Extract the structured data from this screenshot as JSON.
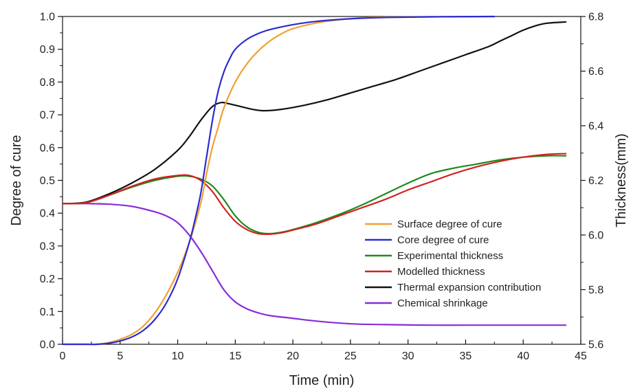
{
  "chart_data": {
    "type": "line",
    "title": "",
    "xlabel": "Time (min)",
    "ylabel_left": "Degree of cure",
    "ylabel_right": "Thickness(mm)",
    "xlim": [
      0,
      45
    ],
    "ylim_left": [
      0,
      1.0
    ],
    "ylim_right": [
      5.6,
      6.8
    ],
    "x_ticks": [
      0,
      5,
      10,
      15,
      20,
      25,
      30,
      35,
      40,
      45
    ],
    "y_left_ticks": [
      0.0,
      0.1,
      0.2,
      0.3,
      0.4,
      0.5,
      0.6,
      0.7,
      0.8,
      0.9,
      1.0
    ],
    "y_right_ticks": [
      5.6,
      5.8,
      6.0,
      6.2,
      6.4,
      6.6,
      6.8
    ],
    "grid": false,
    "legend_position": "bottom-right",
    "series": [
      {
        "name": "Surface degree of cure",
        "axis": "left",
        "color": "#f0a030",
        "points": [
          [
            0,
            0
          ],
          [
            2,
            0
          ],
          [
            3,
            0
          ],
          [
            4,
            0.005
          ],
          [
            5,
            0.015
          ],
          [
            6,
            0.03
          ],
          [
            7,
            0.055
          ],
          [
            8,
            0.095
          ],
          [
            9,
            0.15
          ],
          [
            10,
            0.22
          ],
          [
            11,
            0.31
          ],
          [
            12,
            0.43
          ],
          [
            12.5,
            0.52
          ],
          [
            13,
            0.6
          ],
          [
            13.5,
            0.66
          ],
          [
            14,
            0.72
          ],
          [
            15,
            0.8
          ],
          [
            16,
            0.855
          ],
          [
            17,
            0.895
          ],
          [
            18,
            0.925
          ],
          [
            19,
            0.947
          ],
          [
            20,
            0.963
          ],
          [
            22,
            0.98
          ],
          [
            24,
            0.99
          ],
          [
            26,
            0.996
          ],
          [
            28,
            0.998
          ],
          [
            32,
            0.999
          ],
          [
            37.5,
            1.0
          ]
        ]
      },
      {
        "name": "Core degree of cure",
        "axis": "left",
        "color": "#2b2bd0",
        "points": [
          [
            0,
            0
          ],
          [
            2,
            0
          ],
          [
            3,
            0
          ],
          [
            4,
            0.003
          ],
          [
            5,
            0.01
          ],
          [
            6,
            0.022
          ],
          [
            7,
            0.042
          ],
          [
            8,
            0.075
          ],
          [
            9,
            0.125
          ],
          [
            10,
            0.2
          ],
          [
            11,
            0.31
          ],
          [
            11.5,
            0.38
          ],
          [
            12,
            0.46
          ],
          [
            12.5,
            0.57
          ],
          [
            13,
            0.68
          ],
          [
            13.5,
            0.77
          ],
          [
            14,
            0.83
          ],
          [
            14.5,
            0.87
          ],
          [
            15,
            0.9
          ],
          [
            16,
            0.93
          ],
          [
            17,
            0.948
          ],
          [
            18,
            0.96
          ],
          [
            20,
            0.975
          ],
          [
            22,
            0.985
          ],
          [
            25,
            0.993
          ],
          [
            28,
            0.997
          ],
          [
            32,
            0.999
          ],
          [
            37.5,
            1.0
          ]
        ]
      },
      {
        "name": "Experimental thickness",
        "axis": "right",
        "color": "#1c8a1c",
        "points": [
          [
            0,
            6.115
          ],
          [
            2,
            6.118
          ],
          [
            4,
            6.145
          ],
          [
            6,
            6.175
          ],
          [
            8,
            6.2
          ],
          [
            10,
            6.215
          ],
          [
            11,
            6.215
          ],
          [
            12,
            6.205
          ],
          [
            13,
            6.18
          ],
          [
            14,
            6.13
          ],
          [
            15,
            6.07
          ],
          [
            16,
            6.03
          ],
          [
            17,
            6.01
          ],
          [
            18,
            6.005
          ],
          [
            19,
            6.01
          ],
          [
            20,
            6.02
          ],
          [
            22,
            6.045
          ],
          [
            24,
            6.075
          ],
          [
            26,
            6.11
          ],
          [
            28,
            6.15
          ],
          [
            30,
            6.19
          ],
          [
            32,
            6.225
          ],
          [
            34,
            6.245
          ],
          [
            36,
            6.26
          ],
          [
            38,
            6.275
          ],
          [
            40,
            6.285
          ],
          [
            42,
            6.29
          ],
          [
            43.7,
            6.29
          ]
        ]
      },
      {
        "name": "Modelled thickness",
        "axis": "right",
        "color": "#d42020",
        "points": [
          [
            0,
            6.115
          ],
          [
            2,
            6.118
          ],
          [
            4,
            6.145
          ],
          [
            6,
            6.178
          ],
          [
            8,
            6.205
          ],
          [
            10,
            6.218
          ],
          [
            11,
            6.218
          ],
          [
            12,
            6.2
          ],
          [
            13,
            6.16
          ],
          [
            14,
            6.1
          ],
          [
            15,
            6.05
          ],
          [
            16,
            6.02
          ],
          [
            17,
            6.005
          ],
          [
            18,
            6.003
          ],
          [
            19,
            6.008
          ],
          [
            20,
            6.018
          ],
          [
            22,
            6.04
          ],
          [
            24,
            6.07
          ],
          [
            26,
            6.1
          ],
          [
            28,
            6.13
          ],
          [
            30,
            6.165
          ],
          [
            32,
            6.195
          ],
          [
            34,
            6.225
          ],
          [
            36,
            6.25
          ],
          [
            38,
            6.27
          ],
          [
            40,
            6.285
          ],
          [
            42,
            6.295
          ],
          [
            43.7,
            6.298
          ]
        ]
      },
      {
        "name": "Thermal expansion contribution",
        "axis": "right",
        "color": "#111111",
        "points": [
          [
            0,
            6.115
          ],
          [
            2,
            6.12
          ],
          [
            4,
            6.15
          ],
          [
            6,
            6.19
          ],
          [
            8,
            6.24
          ],
          [
            10,
            6.31
          ],
          [
            11,
            6.36
          ],
          [
            12,
            6.42
          ],
          [
            13,
            6.47
          ],
          [
            13.8,
            6.485
          ],
          [
            14.5,
            6.48
          ],
          [
            15.5,
            6.47
          ],
          [
            16.5,
            6.46
          ],
          [
            17.5,
            6.455
          ],
          [
            19,
            6.46
          ],
          [
            21,
            6.475
          ],
          [
            23,
            6.495
          ],
          [
            25,
            6.52
          ],
          [
            27,
            6.545
          ],
          [
            29,
            6.57
          ],
          [
            31,
            6.6
          ],
          [
            33,
            6.63
          ],
          [
            35,
            6.66
          ],
          [
            37,
            6.69
          ],
          [
            38,
            6.71
          ],
          [
            39,
            6.73
          ],
          [
            40,
            6.75
          ],
          [
            41,
            6.765
          ],
          [
            42,
            6.775
          ],
          [
            43.7,
            6.78
          ]
        ]
      },
      {
        "name": "Chemical shrinkage",
        "axis": "right",
        "color": "#8a2bd8",
        "points": [
          [
            0,
            6.115
          ],
          [
            2,
            6.115
          ],
          [
            4,
            6.113
          ],
          [
            6,
            6.105
          ],
          [
            8,
            6.085
          ],
          [
            9,
            6.07
          ],
          [
            10,
            6.045
          ],
          [
            11,
            6.0
          ],
          [
            12,
            5.94
          ],
          [
            13,
            5.87
          ],
          [
            14,
            5.8
          ],
          [
            15,
            5.755
          ],
          [
            16,
            5.73
          ],
          [
            17,
            5.715
          ],
          [
            18,
            5.705
          ],
          [
            20,
            5.695
          ],
          [
            22,
            5.685
          ],
          [
            25,
            5.675
          ],
          [
            28,
            5.672
          ],
          [
            32,
            5.67
          ],
          [
            36,
            5.67
          ],
          [
            40,
            5.67
          ],
          [
            43.7,
            5.67
          ]
        ]
      }
    ]
  }
}
